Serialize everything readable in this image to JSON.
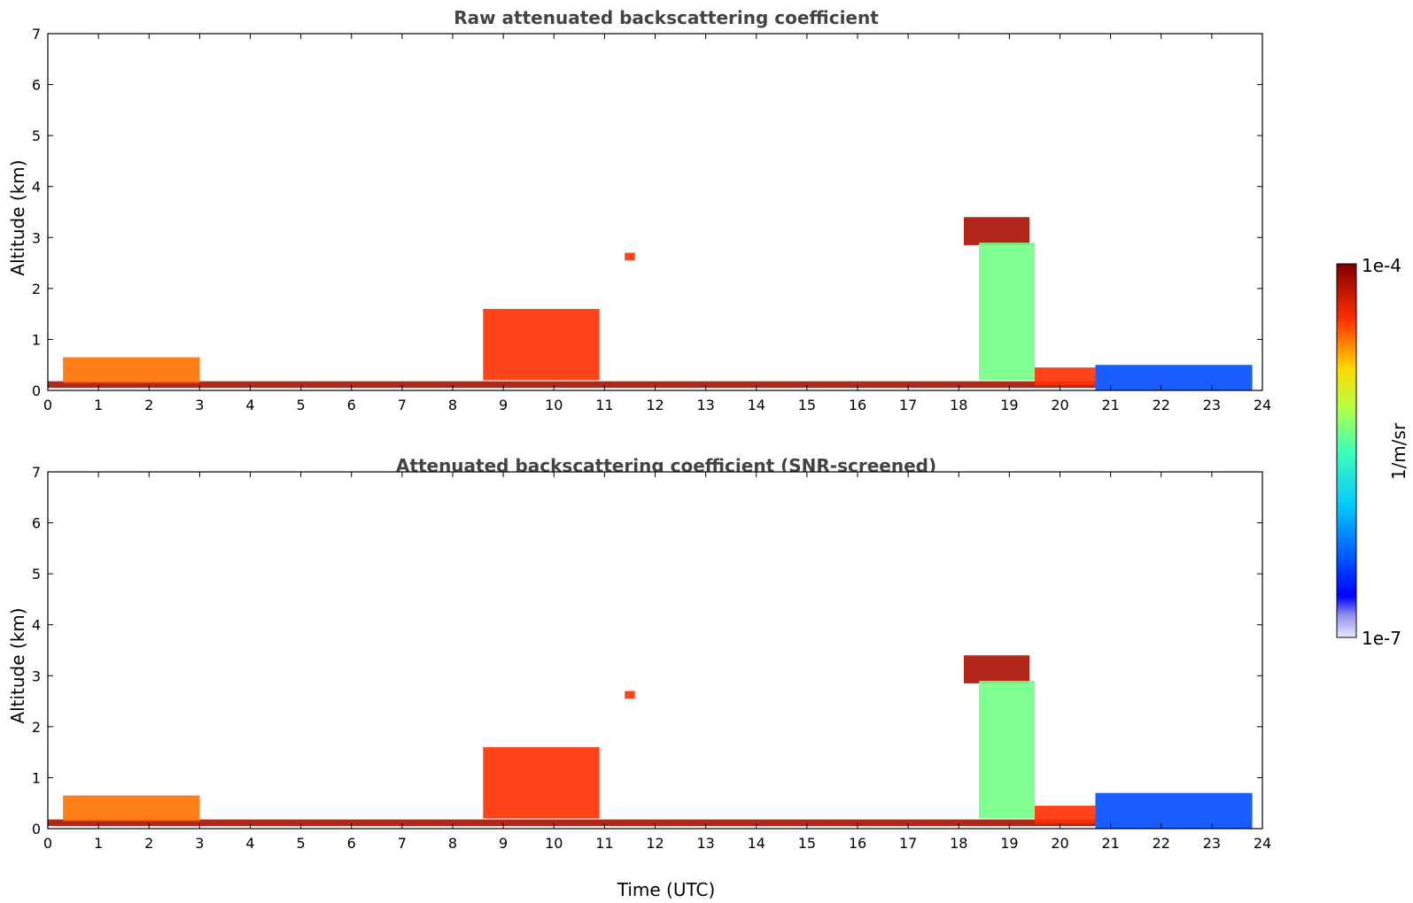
{
  "chart_data": [
    {
      "type": "heatmap",
      "title": "Raw attenuated backscattering coefficient",
      "xlabel": "",
      "ylabel": "Altitude (km)",
      "xlim": [
        0,
        24
      ],
      "ylim": [
        0,
        7
      ],
      "xticks": [
        "0",
        "1",
        "2",
        "3",
        "4",
        "5",
        "6",
        "7",
        "8",
        "9",
        "10",
        "11",
        "12",
        "13",
        "14",
        "15",
        "16",
        "17",
        "18",
        "19",
        "20",
        "21",
        "22",
        "23",
        "24"
      ],
      "yticks": [
        "0",
        "1",
        "2",
        "3",
        "4",
        "5",
        "6",
        "7"
      ],
      "colorscale": "jet",
      "features": [
        {
          "name": "surface layer",
          "x": [
            0,
            20.7
          ],
          "y": [
            0.05,
            0.18
          ],
          "level": 0.95
        },
        {
          "name": "boundary layer",
          "x": [
            0.3,
            3.0
          ],
          "y": [
            0.15,
            0.65
          ],
          "level": 0.8
        },
        {
          "name": "rising aerosol layer",
          "x": [
            8.6,
            10.9
          ],
          "y": [
            0.2,
            1.6
          ],
          "level": 0.85
        },
        {
          "name": "elevated cloud",
          "x": [
            18.1,
            19.4
          ],
          "y": [
            2.85,
            3.4
          ],
          "level": 0.95
        },
        {
          "name": "cloud fall streaks",
          "x": [
            18.4,
            19.5
          ],
          "y": [
            0.2,
            2.9
          ],
          "level": 0.55
        },
        {
          "name": "evening layer",
          "x": [
            19.5,
            20.7
          ],
          "y": [
            0.1,
            0.45
          ],
          "level": 0.85
        },
        {
          "name": "night layer",
          "x": [
            20.7,
            23.8
          ],
          "y": [
            0.0,
            0.5
          ],
          "level": 0.2
        },
        {
          "name": "small cloud",
          "x": [
            11.4,
            11.6
          ],
          "y": [
            2.55,
            2.7
          ],
          "level": 0.85
        }
      ]
    },
    {
      "type": "heatmap",
      "title": "Attenuated backscattering coefficient (SNR-screened)",
      "xlabel": "Time (UTC)",
      "ylabel": "Altitude (km)",
      "xlim": [
        0,
        24
      ],
      "ylim": [
        0,
        7
      ],
      "xticks": [
        "0",
        "1",
        "2",
        "3",
        "4",
        "5",
        "6",
        "7",
        "8",
        "9",
        "10",
        "11",
        "12",
        "13",
        "14",
        "15",
        "16",
        "17",
        "18",
        "19",
        "20",
        "21",
        "22",
        "23",
        "24"
      ],
      "yticks": [
        "0",
        "1",
        "2",
        "3",
        "4",
        "5",
        "6",
        "7"
      ],
      "colorscale": "jet",
      "features": [
        {
          "name": "surface layer",
          "x": [
            0,
            20.7
          ],
          "y": [
            0.05,
            0.18
          ],
          "level": 0.95
        },
        {
          "name": "boundary layer",
          "x": [
            0.3,
            3.0
          ],
          "y": [
            0.15,
            0.65
          ],
          "level": 0.8
        },
        {
          "name": "rising aerosol layer",
          "x": [
            8.6,
            10.9
          ],
          "y": [
            0.2,
            1.6
          ],
          "level": 0.85
        },
        {
          "name": "elevated cloud",
          "x": [
            18.1,
            19.4
          ],
          "y": [
            2.85,
            3.4
          ],
          "level": 0.95
        },
        {
          "name": "cloud fall streaks",
          "x": [
            18.4,
            19.5
          ],
          "y": [
            0.2,
            2.9
          ],
          "level": 0.55
        },
        {
          "name": "evening layer",
          "x": [
            19.5,
            20.7
          ],
          "y": [
            0.1,
            0.45
          ],
          "level": 0.85
        },
        {
          "name": "night layer",
          "x": [
            20.7,
            23.8
          ],
          "y": [
            0.0,
            0.7
          ],
          "level": 0.2
        },
        {
          "name": "small cloud",
          "x": [
            11.4,
            11.6
          ],
          "y": [
            2.55,
            2.7
          ],
          "level": 0.85
        }
      ]
    }
  ],
  "colorbar": {
    "label": "1/m/sr",
    "max_label": "1e-4",
    "min_label": "1e-7"
  }
}
